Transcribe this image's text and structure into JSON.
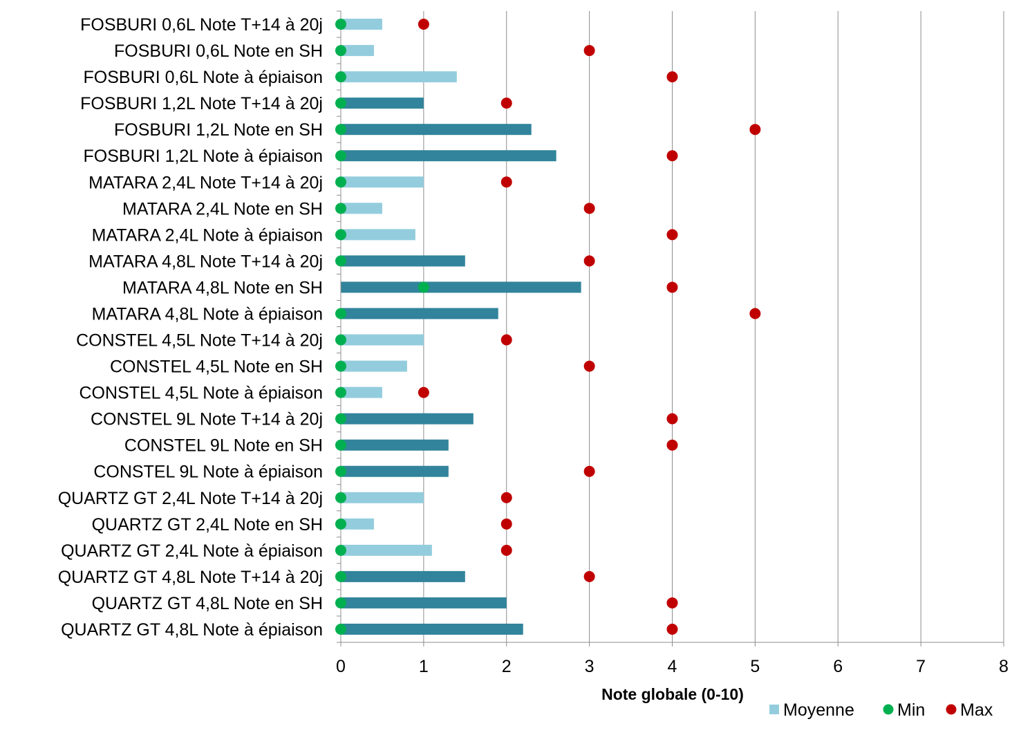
{
  "chart_data": {
    "type": "bar",
    "orientation": "horizontal",
    "xlabel": "Note globale (0-10)",
    "xlim": [
      0,
      8
    ],
    "xticks": [
      0,
      1,
      2,
      3,
      4,
      5,
      6,
      7,
      8
    ],
    "grid": "vertical major gridlines",
    "legend_position": "bottom-right",
    "categories": [
      "FOSBURI 0,6L Note T+14 à 20j",
      "FOSBURI 0,6L Note en SH",
      "FOSBURI 0,6L Note à épiaison",
      "FOSBURI 1,2L Note T+14 à 20j",
      "FOSBURI 1,2L Note en SH",
      "FOSBURI 1,2L Note à épiaison",
      "MATARA 2,4L Note T+14 à 20j",
      "MATARA 2,4L Note en SH",
      "MATARA 2,4L Note à épiaison",
      "MATARA 4,8L Note T+14 à 20j",
      "MATARA 4,8L Note en SH",
      "MATARA 4,8L Note à épiaison",
      "CONSTEL 4,5L Note T+14 à 20j",
      "CONSTEL 4,5L Note en SH",
      "CONSTEL 4,5L Note à épiaison",
      "CONSTEL 9L Note T+14 à 20j",
      "CONSTEL 9L Note en SH",
      "CONSTEL 9L Note à épiaison",
      "QUARTZ GT 2,4L Note T+14 à 20j",
      "QUARTZ GT 2,4L Note en SH",
      "QUARTZ GT 2,4L Note à épiaison",
      "QUARTZ GT 4,8L Note T+14 à 20j",
      "QUARTZ GT 4,8L Note en SH",
      "QUARTZ GT 4,8L Note à épiaison"
    ],
    "series": [
      {
        "name": "Moyenne",
        "kind": "bar",
        "values": [
          0.5,
          0.4,
          1.4,
          1.0,
          2.3,
          2.6,
          1.0,
          0.5,
          0.9,
          1.5,
          2.9,
          1.9,
          1.0,
          0.8,
          0.5,
          1.6,
          1.3,
          1.3,
          1.0,
          0.4,
          1.1,
          1.5,
          2.0,
          2.2
        ],
        "bar_colors": [
          "#93cddd",
          "#93cddd",
          "#93cddd",
          "#31849b",
          "#31849b",
          "#31849b",
          "#93cddd",
          "#93cddd",
          "#93cddd",
          "#31849b",
          "#31849b",
          "#31849b",
          "#93cddd",
          "#93cddd",
          "#93cddd",
          "#31849b",
          "#31849b",
          "#31849b",
          "#93cddd",
          "#93cddd",
          "#93cddd",
          "#31849b",
          "#31849b",
          "#31849b"
        ]
      },
      {
        "name": "Min",
        "kind": "marker",
        "color": "#00b050",
        "values": [
          0,
          0,
          0,
          0,
          0,
          0,
          0,
          0,
          0,
          0,
          1,
          0,
          0,
          0,
          0,
          0,
          0,
          0,
          0,
          0,
          0,
          0,
          0,
          0
        ]
      },
      {
        "name": "Max",
        "kind": "marker",
        "color": "#c00000",
        "values": [
          1,
          3,
          4,
          2,
          5,
          4,
          2,
          3,
          4,
          3,
          4,
          5,
          2,
          3,
          1,
          4,
          4,
          3,
          2,
          2,
          2,
          3,
          4,
          4
        ]
      }
    ],
    "colors": {
      "bar_light": "#93cddd",
      "bar_dark": "#31849b",
      "min_marker": "#00b050",
      "max_marker": "#c00000",
      "grid": "#8c8c8c",
      "axis": "#8c8c8c"
    }
  }
}
